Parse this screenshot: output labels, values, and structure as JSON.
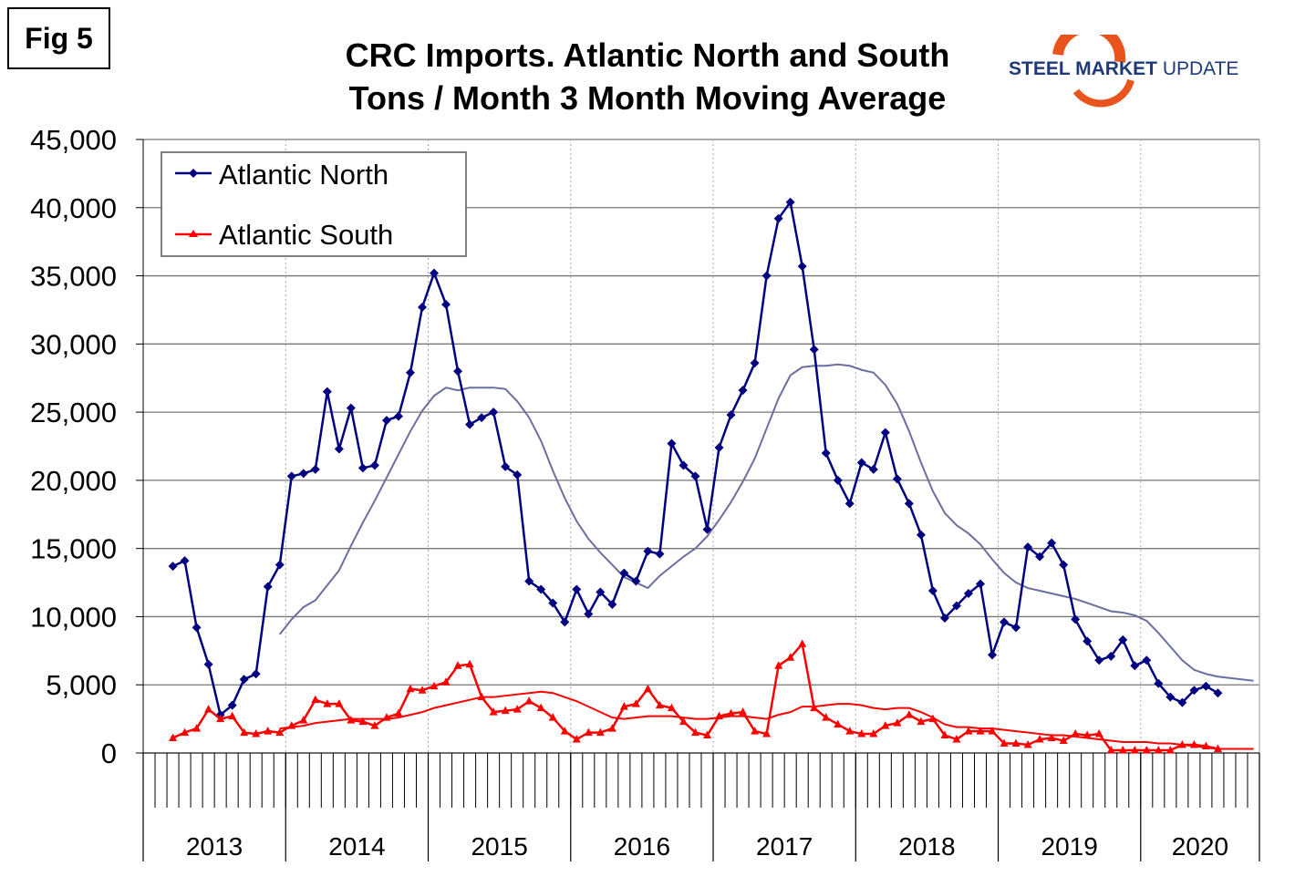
{
  "figure_label": "Fig 5",
  "logo": {
    "text_bold": "STEEL MARKET",
    "text_light": "UPDATE",
    "accent": "#e8541b",
    "color": "#1f3a78"
  },
  "chart_data": {
    "type": "line",
    "title": "CRC Imports. Atlantic North and South",
    "subtitle": "Tons / Month 3 Month Moving Average",
    "xlabel": "",
    "ylabel": "",
    "ylim": [
      0,
      45000
    ],
    "yticks": [
      "0",
      "5,000",
      "10,000",
      "15,000",
      "20,000",
      "25,000",
      "30,000",
      "35,000",
      "40,000",
      "45,000"
    ],
    "year_labels": [
      "2013",
      "2014",
      "2015",
      "2016",
      "2017",
      "2018",
      "2019",
      "2020"
    ],
    "grid": true,
    "legend": "top-left",
    "categories": [
      "Jan 2013",
      "Feb 2013",
      "Mar 2013",
      "Apr 2013",
      "May 2013",
      "Jun 2013",
      "Jul 2013",
      "Aug 2013",
      "Sep 2013",
      "Oct 2013",
      "Nov 2013",
      "Dec 2013",
      "Jan 2014",
      "Feb 2014",
      "Mar 2014",
      "Apr 2014",
      "May 2014",
      "Jun 2014",
      "Jul 2014",
      "Aug 2014",
      "Sep 2014",
      "Oct 2014",
      "Nov 2014",
      "Dec 2014",
      "Jan 2015",
      "Feb 2015",
      "Mar 2015",
      "Apr 2015",
      "May 2015",
      "Jun 2015",
      "Jul 2015",
      "Aug 2015",
      "Sep 2015",
      "Oct 2015",
      "Nov 2015",
      "Dec 2015",
      "Jan 2016",
      "Feb 2016",
      "Mar 2016",
      "Apr 2016",
      "May 2016",
      "Jun 2016",
      "Jul 2016",
      "Aug 2016",
      "Sep 2016",
      "Oct 2016",
      "Nov 2016",
      "Dec 2016",
      "Jan 2017",
      "Feb 2017",
      "Mar 2017",
      "Apr 2017",
      "May 2017",
      "Jun 2017",
      "Jul 2017",
      "Aug 2017",
      "Sep 2017",
      "Oct 2017",
      "Nov 2017",
      "Dec 2017",
      "Jan 2018",
      "Feb 2018",
      "Mar 2018",
      "Apr 2018",
      "May 2018",
      "Jun 2018",
      "Jul 2018",
      "Aug 2018",
      "Sep 2018",
      "Oct 2018",
      "Nov 2018",
      "Dec 2018",
      "Jan 2019",
      "Feb 2019",
      "Mar 2019",
      "Apr 2019",
      "May 2019",
      "Jun 2019",
      "Jul 2019",
      "Aug 2019",
      "Sep 2019",
      "Oct 2019",
      "Nov 2019",
      "Dec 2019",
      "Jan 2020",
      "Feb 2020",
      "Mar 2020",
      "Apr 2020",
      "May 2020",
      "Jun 2020",
      "Jul 2020",
      "Aug 2020",
      "Sep 2020",
      "Oct 2020"
    ],
    "series": [
      {
        "name": "Atlantic North",
        "color": "#000080",
        "marker": "diamond",
        "values": [
          null,
          null,
          13700,
          14100,
          9200,
          6500,
          2800,
          3500,
          5400,
          5800,
          12200,
          13800,
          20300,
          20500,
          20800,
          26500,
          22300,
          25300,
          20900,
          21100,
          24400,
          24700,
          27900,
          32700,
          35200,
          32900,
          28000,
          24100,
          24600,
          25000,
          21000,
          20400,
          12600,
          12000,
          11000,
          9600,
          12000,
          10200,
          11800,
          10900,
          13200,
          12600,
          14800,
          14600,
          22700,
          21100,
          20300,
          16400,
          22400,
          24800,
          26600,
          28600,
          35000,
          39200,
          40400,
          35700,
          29600,
          22000,
          20000,
          18300,
          21300,
          20800,
          23500,
          20100,
          18300,
          16000,
          11900,
          9900,
          10800,
          11700,
          12400,
          7200,
          9600,
          9200,
          15100,
          14400,
          15400,
          13800,
          9800,
          8200,
          6800,
          7100,
          8300,
          6400,
          6800,
          5100,
          4100,
          3700,
          4600,
          4900,
          4400,
          null,
          null,
          null
        ]
      },
      {
        "name": "Atlantic South",
        "color": "#ff0000",
        "marker": "triangle",
        "values": [
          null,
          null,
          1100,
          1500,
          1800,
          3200,
          2500,
          2700,
          1500,
          1400,
          1600,
          1500,
          2000,
          2400,
          3900,
          3600,
          3600,
          2400,
          2300,
          2000,
          2600,
          2900,
          4700,
          4600,
          4900,
          5200,
          6400,
          6500,
          4100,
          3000,
          3100,
          3200,
          3800,
          3300,
          2600,
          1600,
          1000,
          1500,
          1500,
          1800,
          3400,
          3600,
          4700,
          3500,
          3300,
          2300,
          1500,
          1300,
          2700,
          2900,
          3000,
          1600,
          1400,
          6400,
          7000,
          8000,
          3300,
          2600,
          2100,
          1600,
          1400,
          1400,
          2000,
          2200,
          2800,
          2300,
          2500,
          1300,
          1000,
          1600,
          1600,
          1600,
          700,
          700,
          600,
          1000,
          1100,
          900,
          1400,
          1300,
          1400,
          200,
          200,
          200,
          200,
          200,
          200,
          600,
          600,
          500,
          300,
          null,
          null,
          null
        ]
      },
      {
        "color": "#6b6fa0",
        "marker": "none",
        "trend_of": "Atlantic North",
        "values": [
          null,
          null,
          null,
          null,
          null,
          null,
          null,
          null,
          null,
          null,
          null,
          8700,
          9800,
          10700,
          11200,
          12300,
          13400,
          15200,
          16900,
          18500,
          20200,
          21900,
          23600,
          25100,
          26200,
          26800,
          26600,
          26800,
          26800,
          26800,
          26700,
          25800,
          24600,
          22900,
          20700,
          18700,
          17000,
          15700,
          14700,
          13800,
          12900,
          12500,
          12100,
          13000,
          13700,
          14400,
          15000,
          15900,
          17100,
          18400,
          19900,
          21600,
          23800,
          26000,
          27700,
          28300,
          28400,
          28400,
          28500,
          28400,
          28100,
          27900,
          27000,
          25600,
          23600,
          21300,
          19200,
          17600,
          16700,
          16100,
          15300,
          14200,
          13200,
          12500,
          12100,
          11900,
          11700,
          11500,
          11300,
          11000,
          10700,
          10400,
          10300,
          10100,
          9700,
          8800,
          7800,
          6800,
          6100,
          5800,
          5600,
          5500,
          5400,
          5300
        ]
      },
      {
        "color": "#ff0000",
        "marker": "none",
        "trend_of": "Atlantic South",
        "values": [
          null,
          null,
          null,
          null,
          null,
          null,
          null,
          null,
          null,
          null,
          null,
          1800,
          1900,
          2000,
          2200,
          2300,
          2400,
          2500,
          2500,
          2500,
          2500,
          2600,
          2800,
          3000,
          3300,
          3500,
          3700,
          3900,
          4100,
          4100,
          4200,
          4300,
          4400,
          4500,
          4400,
          4100,
          3800,
          3400,
          3000,
          2600,
          2500,
          2600,
          2700,
          2700,
          2700,
          2600,
          2500,
          2500,
          2600,
          2700,
          2700,
          2600,
          2500,
          2800,
          3000,
          3400,
          3400,
          3500,
          3600,
          3600,
          3500,
          3300,
          3200,
          3300,
          3300,
          3000,
          2600,
          2100,
          1900,
          1900,
          1800,
          1800,
          1700,
          1600,
          1500,
          1400,
          1300,
          1300,
          1200,
          1100,
          1000,
          900,
          800,
          800,
          800,
          700,
          700,
          600,
          500,
          400,
          300,
          300,
          300,
          300
        ]
      }
    ]
  }
}
